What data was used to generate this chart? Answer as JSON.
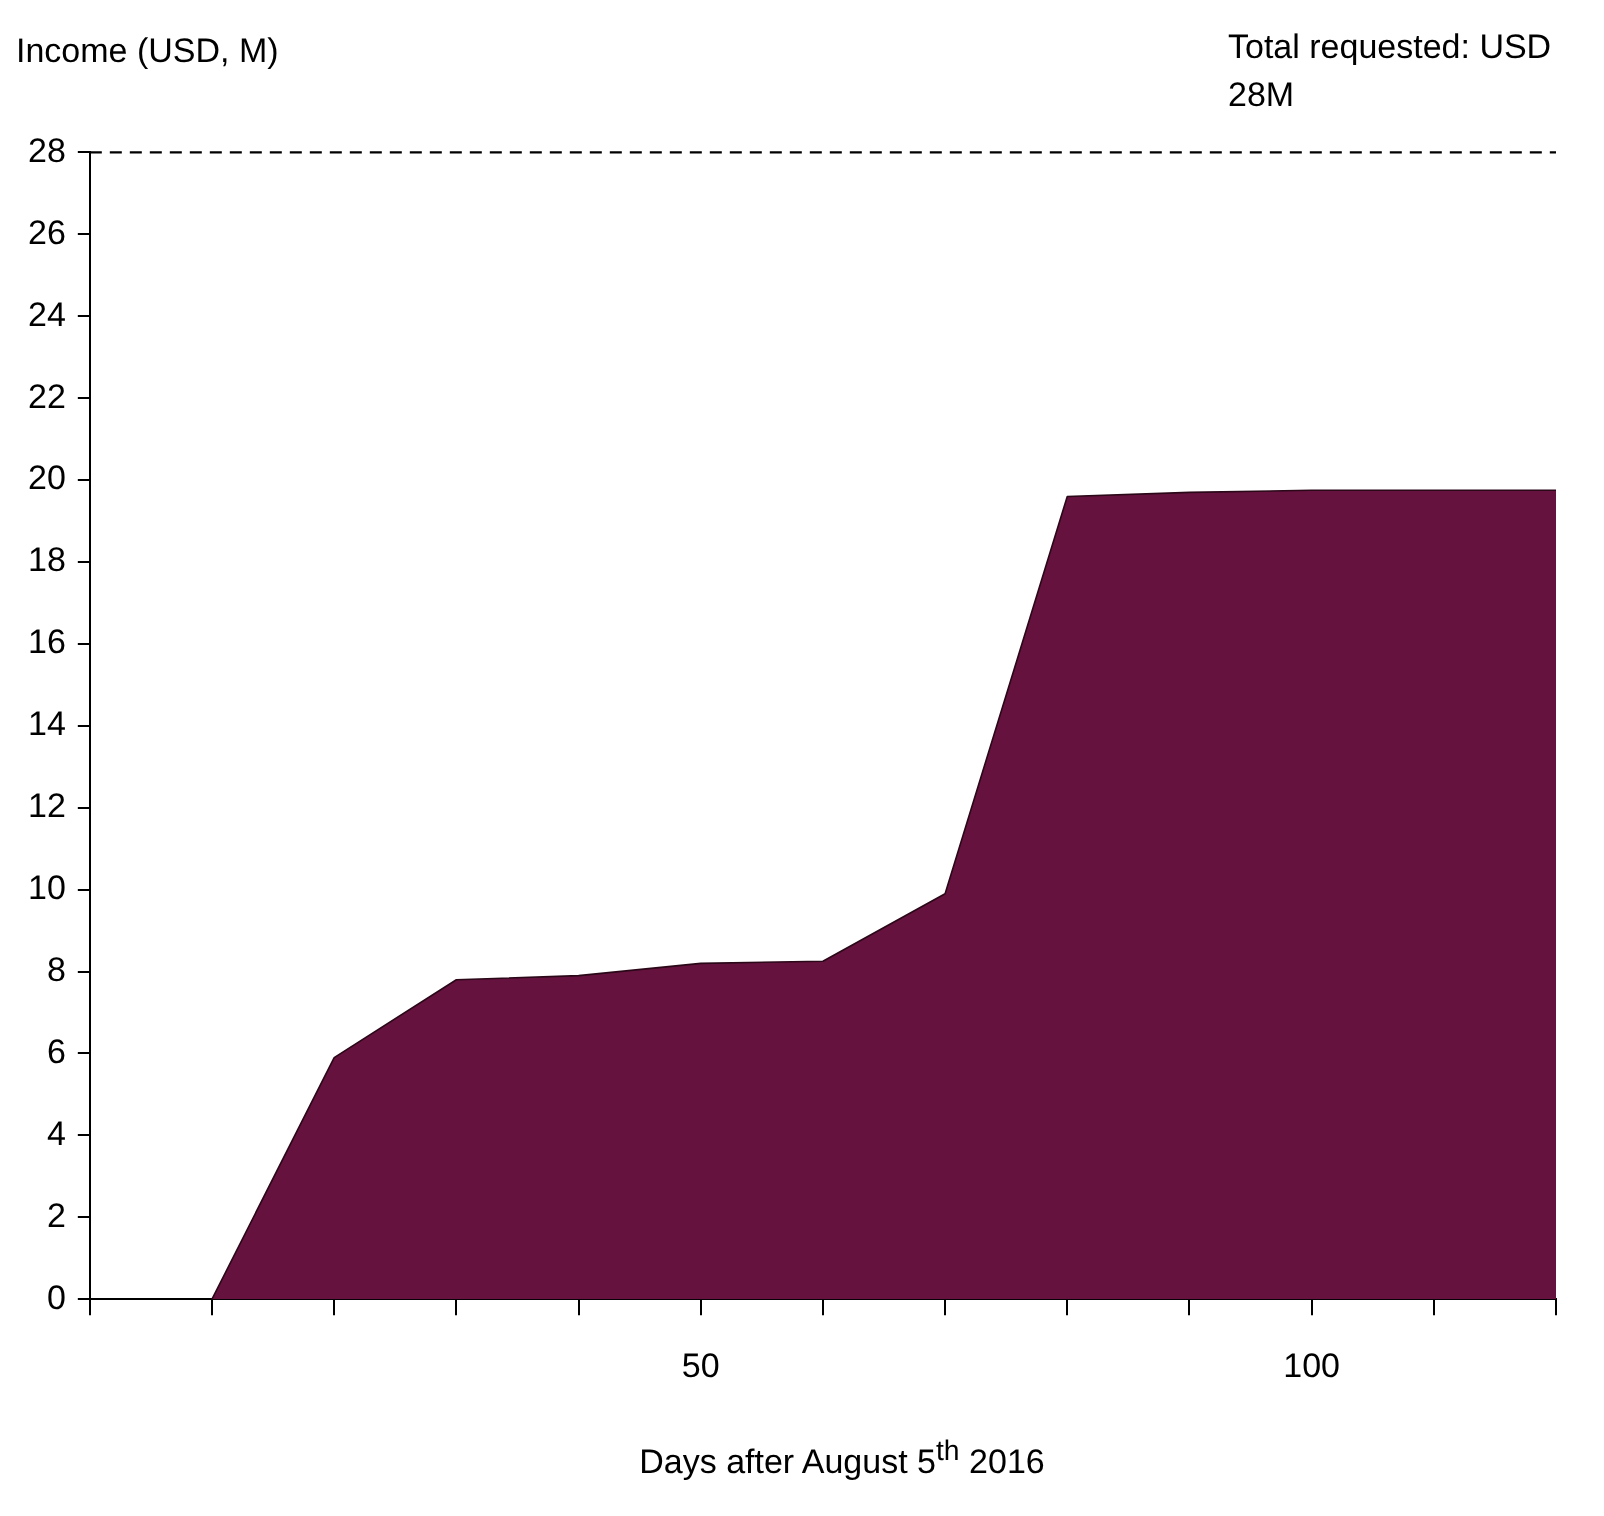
{
  "chart_data": {
    "type": "area",
    "xlabel": "Days after August 5$^{th}$ 2016",
    "ylabel": "Income (USD, M)",
    "x": [
      10,
      20,
      30,
      40,
      50,
      60,
      70,
      80,
      90,
      100,
      110,
      120
    ],
    "series": [
      {
        "color": "#66123f",
        "values": [
          0,
          5.9,
          7.8,
          7.9,
          8.2,
          8.25,
          9.9,
          19.6,
          19.7,
          19.75,
          19.75,
          19.75
        ]
      }
    ],
    "xlim": [
      0,
      120
    ],
    "xticks": [
      {
        "value": 0,
        "label": null
      },
      {
        "value": 10,
        "label": null
      },
      {
        "value": 20,
        "label": null
      },
      {
        "value": 30,
        "label": null
      },
      {
        "value": 40,
        "label": null
      },
      50,
      {
        "value": 60,
        "label": null
      },
      {
        "value": 70,
        "label": null
      },
      {
        "value": 80,
        "label": null
      },
      {
        "value": 90,
        "label": null
      },
      100,
      {
        "value": 110,
        "label": null
      },
      {
        "value": 120,
        "label": null
      }
    ],
    "ylim": [
      0,
      28
    ],
    "yticks": [
      0,
      2,
      4,
      6,
      8,
      10,
      12,
      14,
      16,
      18,
      20,
      22,
      24,
      26,
      28
    ],
    "ref_lines": [
      {
        "axis": "y",
        "value": 28,
        "label": "Total requested: USD 28M",
        "line_style": "dashed",
        "color": "#000000"
      }
    ],
    "grid": false,
    "legend": false
  }
}
